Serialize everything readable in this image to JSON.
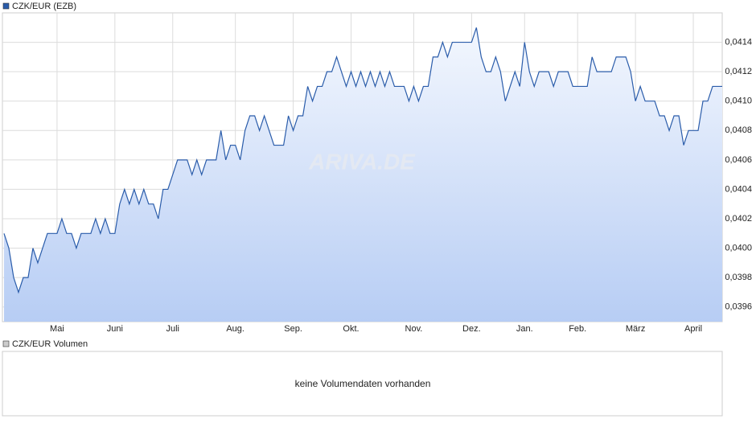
{
  "chart_data": {
    "type": "line",
    "watermark": "ARIVA.DE",
    "categories": [
      null,
      null,
      null,
      null,
      null,
      null,
      null,
      null,
      null,
      null,
      null,
      "Mai",
      null,
      null,
      null,
      null,
      null,
      null,
      null,
      null,
      null,
      null,
      null,
      "Juni",
      null,
      null,
      null,
      null,
      null,
      null,
      null,
      null,
      null,
      null,
      null,
      "Juli",
      null,
      null,
      null,
      null,
      null,
      null,
      null,
      null,
      null,
      null,
      null,
      null,
      "Aug.",
      null,
      null,
      null,
      null,
      null,
      null,
      null,
      null,
      null,
      null,
      null,
      "Sep.",
      null,
      null,
      null,
      null,
      null,
      null,
      null,
      null,
      null,
      null,
      null,
      "Okt.",
      null,
      null,
      null,
      null,
      null,
      null,
      null,
      null,
      null,
      null,
      null,
      null,
      "Nov.",
      null,
      null,
      null,
      null,
      null,
      null,
      null,
      null,
      null,
      null,
      null,
      "Dez.",
      null,
      null,
      null,
      null,
      null,
      null,
      null,
      null,
      null,
      null,
      "Jan.",
      null,
      null,
      null,
      null,
      null,
      null,
      null,
      null,
      null,
      null,
      "Feb.",
      null,
      null,
      null,
      null,
      null,
      null,
      null,
      null,
      null,
      null,
      null,
      "März",
      null,
      null,
      null,
      null,
      null,
      null,
      null,
      null,
      null,
      null,
      null,
      "April",
      null,
      null,
      null,
      null,
      null,
      null
    ],
    "series": [
      {
        "name": "CZK/EUR (EZB)",
        "color": "#2a5caa",
        "values": [
          0.0401,
          0.04,
          0.0398,
          0.0397,
          0.0398,
          0.0398,
          0.04,
          0.0399,
          0.04,
          0.0401,
          0.0401,
          0.0401,
          0.0402,
          0.0401,
          0.0401,
          0.04,
          0.0401,
          0.0401,
          0.0401,
          0.0402,
          0.0401,
          0.0402,
          0.0401,
          0.0401,
          0.0403,
          0.0404,
          0.0403,
          0.0404,
          0.0403,
          0.0404,
          0.0403,
          0.0403,
          0.0402,
          0.0404,
          0.0404,
          0.0405,
          0.0406,
          0.0406,
          0.0406,
          0.0405,
          0.0406,
          0.0405,
          0.0406,
          0.0406,
          0.0406,
          0.0408,
          0.0406,
          0.0407,
          0.0407,
          0.0406,
          0.0408,
          0.0409,
          0.0409,
          0.0408,
          0.0409,
          0.0408,
          0.0407,
          0.0407,
          0.0407,
          0.0409,
          0.0408,
          0.0409,
          0.0409,
          0.0411,
          0.041,
          0.0411,
          0.0411,
          0.0412,
          0.0412,
          0.0413,
          0.0412,
          0.0411,
          0.0412,
          0.0411,
          0.0412,
          0.0411,
          0.0412,
          0.0411,
          0.0412,
          0.0411,
          0.0412,
          0.0411,
          0.0411,
          0.0411,
          0.041,
          0.0411,
          0.041,
          0.0411,
          0.0411,
          0.0413,
          0.0413,
          0.0414,
          0.0413,
          0.0414,
          0.0414,
          0.0414,
          0.0414,
          0.0414,
          0.0415,
          0.0413,
          0.0412,
          0.0412,
          0.0413,
          0.0412,
          0.041,
          0.0411,
          0.0412,
          0.0411,
          0.0414,
          0.0412,
          0.0411,
          0.0412,
          0.0412,
          0.0412,
          0.0411,
          0.0412,
          0.0412,
          0.0412,
          0.0411,
          0.0411,
          0.0411,
          0.0411,
          0.0413,
          0.0412,
          0.0412,
          0.0412,
          0.0412,
          0.0413,
          0.0413,
          0.0413,
          0.0412,
          0.041,
          0.0411,
          0.041,
          0.041,
          0.041,
          0.0409,
          0.0409,
          0.0408,
          0.0409,
          0.0409,
          0.0407,
          0.0408,
          0.0408,
          0.0408,
          0.041,
          0.041,
          0.0411,
          0.0411,
          0.0411
        ]
      }
    ],
    "ylim": [
      0.0395,
      0.0416
    ],
    "yticks": [
      {
        "value": 0.0396,
        "label": "0,0396"
      },
      {
        "value": 0.0398,
        "label": "0,0398"
      },
      {
        "value": 0.04,
        "label": "0,0400"
      },
      {
        "value": 0.0402,
        "label": "0,0402"
      },
      {
        "value": 0.0404,
        "label": "0,0404"
      },
      {
        "value": 0.0406,
        "label": "0,0406"
      },
      {
        "value": 0.0408,
        "label": "0,0408"
      },
      {
        "value": 0.041,
        "label": "0,0410"
      },
      {
        "value": 0.0412,
        "label": "0,0412"
      },
      {
        "value": 0.0414,
        "label": "0,0414"
      }
    ],
    "grid": true
  },
  "volume_panel": {
    "legend": "CZK/EUR Volumen",
    "message": "keine Volumendaten vorhanden"
  }
}
